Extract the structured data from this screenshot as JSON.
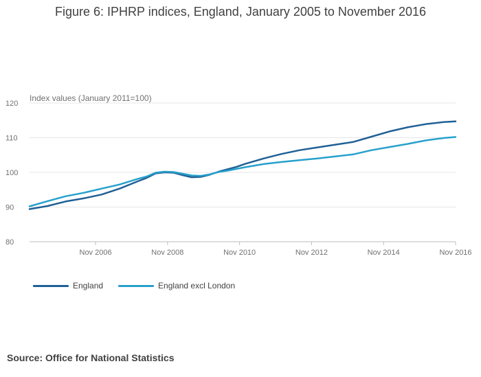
{
  "title": "Figure 6: IPHRP indices, England, January 2005 to November 2016",
  "source": "Source: Office for National Statistics",
  "colors": {
    "england": "#206095",
    "england_excl_london": "#27a0cc",
    "grid": "#e5e6e7",
    "axis": "#bdbdbd"
  },
  "chart_data": {
    "type": "line",
    "title": "Figure 6: IPHRP indices, England, January 2005 to November 2016",
    "ylabel": "Index values (January 2011=100)",
    "xlabel": "",
    "ylim": [
      80,
      120
    ],
    "yticks": [
      80,
      90,
      100,
      110,
      120
    ],
    "xlim": [
      2005.0,
      2016.8333
    ],
    "xticks": [
      {
        "value": 2006.8333,
        "label": "Nov 2006"
      },
      {
        "value": 2008.8333,
        "label": "Nov 2008"
      },
      {
        "value": 2010.8333,
        "label": "Nov 2010"
      },
      {
        "value": 2012.8333,
        "label": "Nov 2012"
      },
      {
        "value": 2014.8333,
        "label": "Nov 2014"
      },
      {
        "value": 2016.8333,
        "label": "Nov 2016"
      }
    ],
    "grid": true,
    "legend_position": "bottom-left",
    "series": [
      {
        "name": "England",
        "x": [
          2005.0,
          2005.5,
          2006.0,
          2006.5,
          2007.0,
          2007.5,
          2008.0,
          2008.25,
          2008.5,
          2008.75,
          2009.0,
          2009.25,
          2009.5,
          2009.75,
          2010.0,
          2010.25,
          2010.5,
          2010.75,
          2011.0,
          2011.5,
          2012.0,
          2012.5,
          2013.0,
          2013.5,
          2014.0,
          2014.5,
          2015.0,
          2015.5,
          2016.0,
          2016.5,
          2016.8333
        ],
        "values": [
          89.4,
          90.3,
          91.6,
          92.5,
          93.6,
          95.3,
          97.4,
          98.4,
          99.7,
          100.0,
          99.9,
          99.2,
          98.6,
          98.7,
          99.3,
          100.2,
          100.9,
          101.6,
          102.5,
          104.0,
          105.3,
          106.4,
          107.2,
          108.0,
          108.8,
          110.3,
          111.8,
          113.0,
          113.9,
          114.5,
          114.7
        ]
      },
      {
        "name": "England excl London",
        "x": [
          2005.0,
          2005.5,
          2006.0,
          2006.5,
          2007.0,
          2007.5,
          2008.0,
          2008.25,
          2008.5,
          2008.75,
          2009.0,
          2009.25,
          2009.5,
          2009.75,
          2010.0,
          2010.25,
          2010.5,
          2010.75,
          2011.0,
          2011.5,
          2012.0,
          2012.5,
          2013.0,
          2013.5,
          2014.0,
          2014.5,
          2015.0,
          2015.5,
          2016.0,
          2016.5,
          2016.8333
        ],
        "values": [
          90.2,
          91.7,
          93.1,
          94.1,
          95.3,
          96.5,
          98.1,
          98.8,
          99.9,
          100.2,
          100.1,
          99.6,
          99.1,
          99.0,
          99.4,
          100.1,
          100.5,
          101.0,
          101.5,
          102.4,
          103.0,
          103.5,
          104.0,
          104.6,
          105.2,
          106.4,
          107.3,
          108.2,
          109.2,
          109.9,
          110.2
        ]
      }
    ]
  }
}
